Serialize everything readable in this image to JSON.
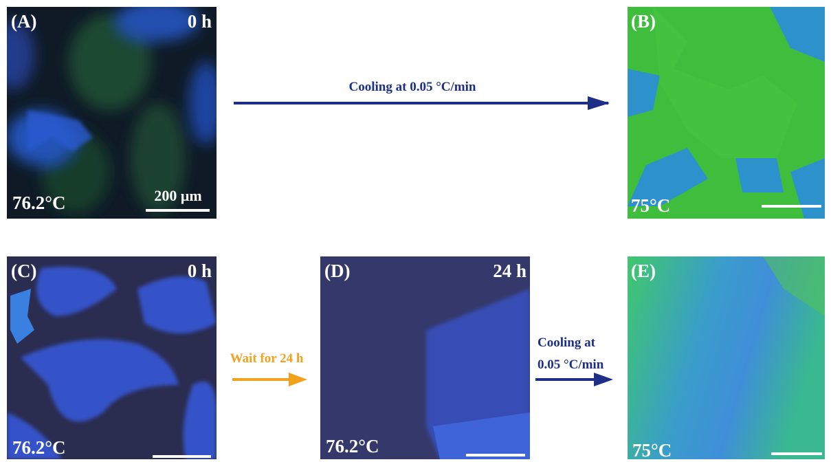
{
  "panels": [
    {
      "label": "(A)",
      "time": "0 h",
      "temperature": "76.2°C",
      "scale_bar": "200 μm"
    },
    {
      "label": "(B)",
      "temperature": "75°C"
    },
    {
      "label": "(C)",
      "time": "0 h",
      "temperature": "76.2°C"
    },
    {
      "label": "(D)",
      "time": "24 h",
      "temperature": "76.2°C"
    },
    {
      "label": "(E)",
      "temperature": "75°C"
    }
  ],
  "arrows": [
    {
      "label_lines": [
        "Cooling at 0.05 °C/min"
      ]
    },
    {
      "label_lines": [
        "Wait for 24 h"
      ]
    },
    {
      "label_lines": [
        "Cooling at",
        "0.05 °C/min"
      ]
    }
  ]
}
